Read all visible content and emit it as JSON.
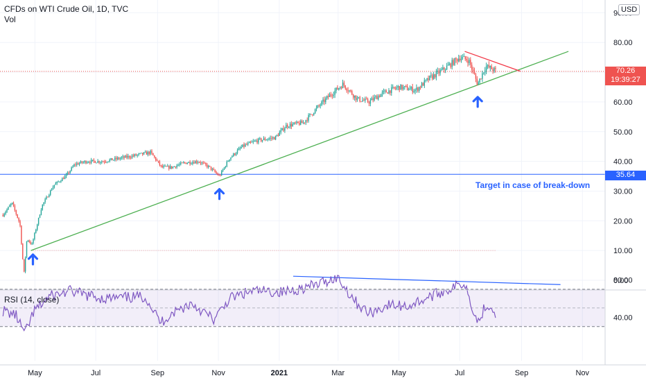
{
  "header": {
    "title": "CFDs on WTI Crude Oil, 1D, TVC",
    "volume_label": "Vol",
    "currency": "USD"
  },
  "price_badge": {
    "price": "70.26",
    "countdown": "19:39:27",
    "color": "#ef5350"
  },
  "support_badge": {
    "price": "35.64",
    "color": "#2962ff"
  },
  "annotations": {
    "breakdown_target": "Target in case of break-down"
  },
  "rsi": {
    "label": "RSI (14, close)",
    "upper": 70,
    "middle": 50,
    "lower": 30
  },
  "chart_data": [
    {
      "type": "candlestick",
      "title": "CFDs on WTI Crude Oil, 1D, TVC",
      "x_ticks": [
        "May",
        "Jul",
        "Sep",
        "Nov",
        "2021",
        "Mar",
        "May",
        "Jul",
        "Sep",
        "Nov"
      ],
      "y_ticks": [
        "0.00",
        "10.00",
        "20.00",
        "30.00",
        "40.00",
        "50.00",
        "60.00",
        "70.00",
        "80.00",
        "90.00"
      ],
      "ylim": [
        -5,
        92
      ],
      "grid": true,
      "series": [
        {
          "name": "price",
          "points": [
            {
              "x": "2020-03-30",
              "y": 22
            },
            {
              "x": "2020-04-08",
              "y": 26
            },
            {
              "x": "2020-04-16",
              "y": 19
            },
            {
              "x": "2020-04-20",
              "y": 2
            },
            {
              "x": "2020-04-23",
              "y": 14
            },
            {
              "x": "2020-04-28",
              "y": 12
            },
            {
              "x": "2020-05-08",
              "y": 25
            },
            {
              "x": "2020-05-20",
              "y": 32
            },
            {
              "x": "2020-06-01",
              "y": 35
            },
            {
              "x": "2020-06-10",
              "y": 39
            },
            {
              "x": "2020-06-22",
              "y": 40
            },
            {
              "x": "2020-07-08",
              "y": 40
            },
            {
              "x": "2020-07-25",
              "y": 41
            },
            {
              "x": "2020-08-10",
              "y": 42
            },
            {
              "x": "2020-08-25",
              "y": 43
            },
            {
              "x": "2020-09-05",
              "y": 38
            },
            {
              "x": "2020-09-15",
              "y": 38
            },
            {
              "x": "2020-09-28",
              "y": 39.5
            },
            {
              "x": "2020-10-12",
              "y": 40
            },
            {
              "x": "2020-10-23",
              "y": 38
            },
            {
              "x": "2020-11-02",
              "y": 35
            },
            {
              "x": "2020-11-12",
              "y": 41
            },
            {
              "x": "2020-11-25",
              "y": 45
            },
            {
              "x": "2020-12-10",
              "y": 47
            },
            {
              "x": "2020-12-28",
              "y": 48
            },
            {
              "x": "2021-01-08",
              "y": 52
            },
            {
              "x": "2021-01-25",
              "y": 53
            },
            {
              "x": "2021-02-08",
              "y": 58
            },
            {
              "x": "2021-02-20",
              "y": 62
            },
            {
              "x": "2021-03-06",
              "y": 66
            },
            {
              "x": "2021-03-20",
              "y": 61
            },
            {
              "x": "2021-04-01",
              "y": 60
            },
            {
              "x": "2021-04-15",
              "y": 63
            },
            {
              "x": "2021-05-01",
              "y": 65
            },
            {
              "x": "2021-05-18",
              "y": 64
            },
            {
              "x": "2021-06-01",
              "y": 68
            },
            {
              "x": "2021-06-15",
              "y": 71
            },
            {
              "x": "2021-07-01",
              "y": 75
            },
            {
              "x": "2021-07-10",
              "y": 74
            },
            {
              "x": "2021-07-19",
              "y": 66
            },
            {
              "x": "2021-07-27",
              "y": 72
            },
            {
              "x": "2021-08-03",
              "y": 71
            },
            {
              "x": "2021-08-07",
              "y": 70.26
            }
          ]
        },
        {
          "name": "uptrend line",
          "color": "#4caf50",
          "points": [
            {
              "x": "2020-04-27",
              "y": 10
            },
            {
              "x": "2021-10-18",
              "y": 77
            }
          ]
        },
        {
          "name": "resistance line",
          "color": "#f23645",
          "points": [
            {
              "x": "2021-07-06",
              "y": 77
            },
            {
              "x": "2021-08-31",
              "y": 70.3
            }
          ]
        },
        {
          "name": "support level",
          "color": "#2962ff",
          "y": 35.64
        }
      ],
      "markers": [
        {
          "type": "up-arrow",
          "x": "2020-04-29",
          "y": 7
        },
        {
          "type": "up-arrow",
          "x": "2020-11-02",
          "y": 29
        },
        {
          "type": "up-arrow",
          "x": "2021-07-19",
          "y": 60
        }
      ],
      "annotations": [
        "Target in case of break-down"
      ]
    },
    {
      "type": "line",
      "title": "RSI (14, close)",
      "y_ticks": [
        "40.00",
        "80.00"
      ],
      "ylim": [
        20,
        85
      ],
      "bands": [
        30,
        50,
        70
      ],
      "series": [
        {
          "name": "RSI",
          "points": [
            {
              "x": "2020-03-30",
              "y": 47
            },
            {
              "x": "2020-04-12",
              "y": 42
            },
            {
              "x": "2020-04-21",
              "y": 22
            },
            {
              "x": "2020-04-30",
              "y": 46
            },
            {
              "x": "2020-05-15",
              "y": 62
            },
            {
              "x": "2020-06-05",
              "y": 68
            },
            {
              "x": "2020-06-20",
              "y": 64
            },
            {
              "x": "2020-07-10",
              "y": 60
            },
            {
              "x": "2020-08-01",
              "y": 61
            },
            {
              "x": "2020-08-20",
              "y": 62
            },
            {
              "x": "2020-09-04",
              "y": 34
            },
            {
              "x": "2020-09-15",
              "y": 44
            },
            {
              "x": "2020-10-05",
              "y": 55
            },
            {
              "x": "2020-10-28",
              "y": 37
            },
            {
              "x": "2020-11-12",
              "y": 60
            },
            {
              "x": "2020-12-05",
              "y": 68
            },
            {
              "x": "2021-01-05",
              "y": 67
            },
            {
              "x": "2021-02-05",
              "y": 74
            },
            {
              "x": "2021-02-28",
              "y": 83
            },
            {
              "x": "2021-03-20",
              "y": 55
            },
            {
              "x": "2021-04-01",
              "y": 44
            },
            {
              "x": "2021-04-20",
              "y": 53
            },
            {
              "x": "2021-05-10",
              "y": 52
            },
            {
              "x": "2021-06-01",
              "y": 62
            },
            {
              "x": "2021-06-20",
              "y": 70
            },
            {
              "x": "2021-07-06",
              "y": 77
            },
            {
              "x": "2021-07-19",
              "y": 34
            },
            {
              "x": "2021-07-28",
              "y": 55
            },
            {
              "x": "2021-08-07",
              "y": 44
            }
          ]
        },
        {
          "name": "RSI divergence line",
          "color": "#2962ff",
          "points": [
            {
              "x": "2021-01-15",
              "y": 84
            },
            {
              "x": "2021-10-10",
              "y": 75
            }
          ]
        }
      ]
    }
  ]
}
